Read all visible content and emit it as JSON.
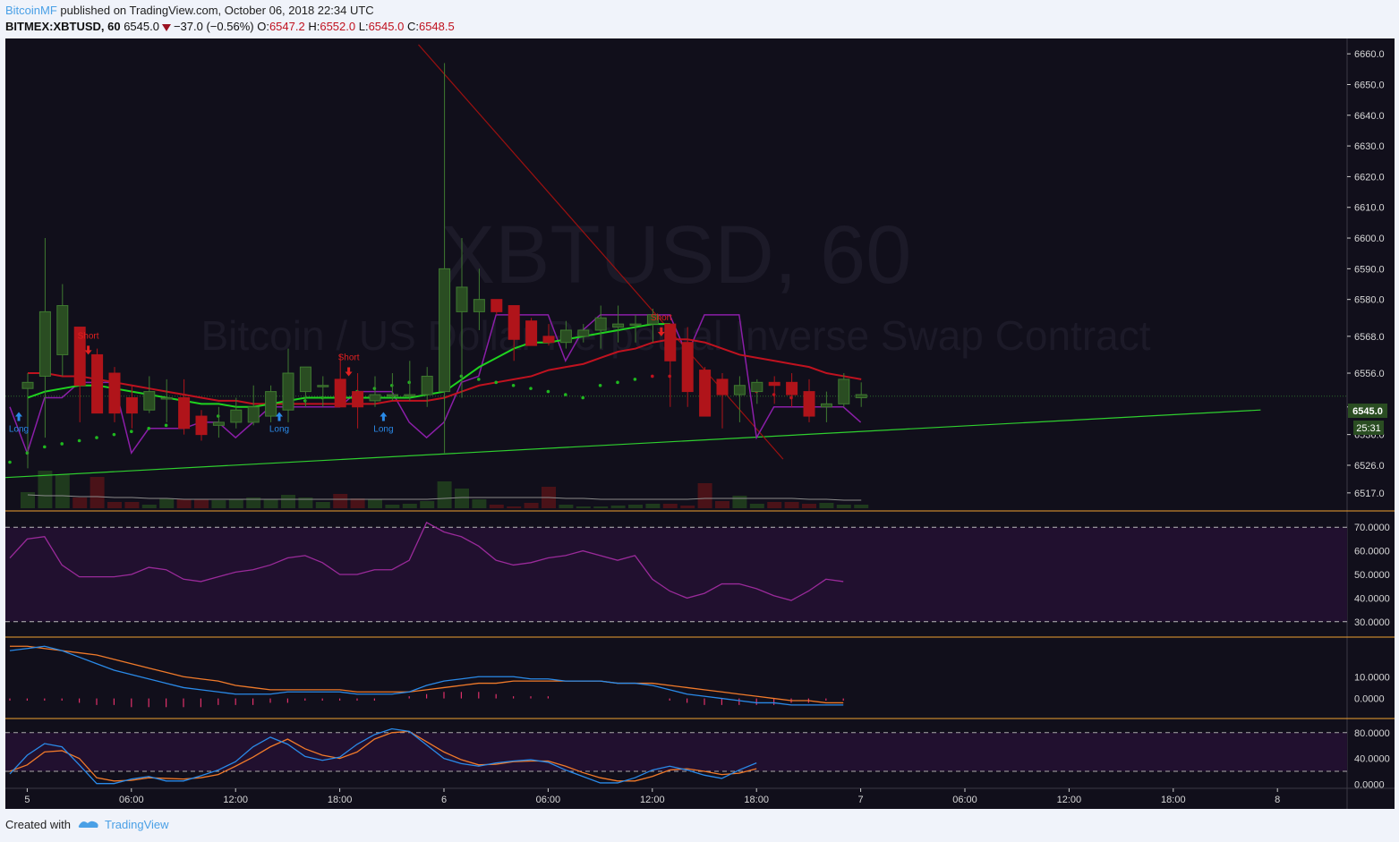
{
  "header": {
    "author": "BitcoinMF",
    "published": "published on TradingView.com, October 06, 2018 22:34 UTC",
    "symbol": "BITMEX:XBTUSD, 60",
    "last": "6545.0",
    "change": "−37.0 (−0.56%)",
    "o_label": "O:",
    "o": "6547.2",
    "h_label": "H:",
    "h": "6552.0",
    "l_label": "L:",
    "l": "6545.0",
    "c_label": "C:",
    "c": "6548.5"
  },
  "watermark": {
    "title": "XBTUSD, 60",
    "subtitle": "Bitcoin / US Dollar Perpetual Inverse Swap Contract"
  },
  "footer": {
    "created": "Created with",
    "brand": "TradingView"
  },
  "colors": {
    "bg": "#110f1b",
    "up": "#2a4d22",
    "up_border": "#3f7a30",
    "down": "#b0141a",
    "ma_red": "#c0121f",
    "ma_green": "#1fd31f",
    "envelope": "#8b1ea8",
    "trend_green": "#2fcf2f",
    "trend_red": "#9b1010",
    "rsi": "#9a2a9a",
    "macd": "#2a8ae8",
    "signal": "#f07a2a",
    "stoch_k": "#2a8ae8",
    "stoch_d": "#f07a2a",
    "pane_sep": "#f0a030",
    "rsi_bg": "#21102f"
  },
  "chart_data": {
    "type": "candlestick",
    "ylim": [
      6512,
      6665
    ],
    "y_ticks": [
      6660.0,
      6650.0,
      6640.0,
      6630.0,
      6620.0,
      6610.0,
      6600.0,
      6590.0,
      6580.0,
      6568.0,
      6556.0,
      6545.0,
      6536.0,
      6526.0,
      6517.0
    ],
    "price_badge": "6545.0",
    "countdown_badge": "25:31",
    "x_ticks": [
      "5",
      "06:00",
      "12:00",
      "18:00",
      "6",
      "06:00",
      "12:00",
      "18:00",
      "7",
      "06:00",
      "12:00",
      "18:00",
      "8"
    ],
    "tick_index": [
      1,
      7,
      13,
      19,
      25,
      31,
      37,
      43,
      49,
      55,
      61,
      67,
      73
    ],
    "candles": [
      {
        "o": 6551,
        "h": 6556,
        "l": 6525,
        "c": 6553
      },
      {
        "o": 6555,
        "h": 6600,
        "l": 6535,
        "c": 6576
      },
      {
        "o": 6562,
        "h": 6585,
        "l": 6555,
        "c": 6578
      },
      {
        "o": 6571,
        "h": 6571,
        "l": 6540,
        "c": 6552
      },
      {
        "o": 6562,
        "h": 6564,
        "l": 6543,
        "c": 6543
      },
      {
        "o": 6556,
        "h": 6558,
        "l": 6540,
        "c": 6543
      },
      {
        "o": 6548,
        "h": 6552,
        "l": 6538,
        "c": 6543
      },
      {
        "o": 6544,
        "h": 6555,
        "l": 6543,
        "c": 6550
      },
      {
        "o": 6548,
        "h": 6554,
        "l": 6540,
        "c": 6548
      },
      {
        "o": 6548,
        "h": 6554,
        "l": 6536,
        "c": 6538
      },
      {
        "o": 6542,
        "h": 6544,
        "l": 6534,
        "c": 6536
      },
      {
        "o": 6539,
        "h": 6545,
        "l": 6535,
        "c": 6540
      },
      {
        "o": 6540,
        "h": 6548,
        "l": 6538,
        "c": 6544
      },
      {
        "o": 6540,
        "h": 6552,
        "l": 6539,
        "c": 6545
      },
      {
        "o": 6542,
        "h": 6552,
        "l": 6540,
        "c": 6550
      },
      {
        "o": 6544,
        "h": 6564,
        "l": 6540,
        "c": 6556
      },
      {
        "o": 6550,
        "h": 6558,
        "l": 6545,
        "c": 6558
      },
      {
        "o": 6552,
        "h": 6555,
        "l": 6545,
        "c": 6552
      },
      {
        "o": 6554,
        "h": 6562,
        "l": 6545,
        "c": 6545
      },
      {
        "o": 6550,
        "h": 6556,
        "l": 6538,
        "c": 6545
      },
      {
        "o": 6547,
        "h": 6555,
        "l": 6545,
        "c": 6549
      },
      {
        "o": 6549,
        "h": 6556,
        "l": 6547,
        "c": 6549
      },
      {
        "o": 6549,
        "h": 6560,
        "l": 6547,
        "c": 6549
      },
      {
        "o": 6549,
        "h": 6558,
        "l": 6545,
        "c": 6555
      },
      {
        "o": 6550,
        "h": 6657,
        "l": 6530,
        "c": 6590
      },
      {
        "o": 6576,
        "h": 6600,
        "l": 6548,
        "c": 6584
      },
      {
        "o": 6576,
        "h": 6590,
        "l": 6570,
        "c": 6580
      },
      {
        "o": 6580,
        "h": 6580,
        "l": 6575,
        "c": 6576
      },
      {
        "o": 6578,
        "h": 6578,
        "l": 6560,
        "c": 6567
      },
      {
        "o": 6573,
        "h": 6574,
        "l": 6565,
        "c": 6565
      },
      {
        "o": 6568,
        "h": 6572,
        "l": 6565,
        "c": 6566
      },
      {
        "o": 6566,
        "h": 6573,
        "l": 6564,
        "c": 6570
      },
      {
        "o": 6568,
        "h": 6572,
        "l": 6566,
        "c": 6570
      },
      {
        "o": 6570,
        "h": 6578,
        "l": 6564,
        "c": 6574
      },
      {
        "o": 6571,
        "h": 6578,
        "l": 6566,
        "c": 6572
      },
      {
        "o": 6572,
        "h": 6575,
        "l": 6566,
        "c": 6572
      },
      {
        "o": 6572,
        "h": 6577,
        "l": 6566,
        "c": 6575
      },
      {
        "o": 6572,
        "h": 6572,
        "l": 6545,
        "c": 6560
      },
      {
        "o": 6566,
        "h": 6571,
        "l": 6545,
        "c": 6550
      },
      {
        "o": 6557,
        "h": 6558,
        "l": 6542,
        "c": 6542
      },
      {
        "o": 6554,
        "h": 6556,
        "l": 6538,
        "c": 6549
      },
      {
        "o": 6549,
        "h": 6555,
        "l": 6540,
        "c": 6552
      },
      {
        "o": 6550,
        "h": 6554,
        "l": 6546,
        "c": 6553
      },
      {
        "o": 6553,
        "h": 6555,
        "l": 6546,
        "c": 6552
      },
      {
        "o": 6553,
        "h": 6556,
        "l": 6545,
        "c": 6549
      },
      {
        "o": 6550,
        "h": 6554,
        "l": 6540,
        "c": 6542
      },
      {
        "o": 6545,
        "h": 6550,
        "l": 6540,
        "c": 6546
      },
      {
        "o": 6546,
        "h": 6556,
        "l": 6545,
        "c": 6554
      },
      {
        "o": 6548,
        "h": 6553,
        "l": 6545,
        "c": 6549
      }
    ],
    "volume": [
      18,
      42,
      38,
      12,
      35,
      7,
      7,
      4,
      11,
      10,
      10,
      9,
      10,
      12,
      10,
      15,
      12,
      7,
      16,
      11,
      10,
      4,
      5,
      8,
      30,
      22,
      10,
      4,
      2,
      6,
      24,
      4,
      2,
      2,
      3,
      4,
      5,
      5,
      3,
      28,
      8,
      14,
      5,
      7,
      7,
      5,
      6,
      4,
      4
    ],
    "volume_ma": [
      15,
      14,
      14,
      13,
      13,
      12,
      12,
      11,
      11,
      10,
      10,
      10,
      10,
      10,
      10,
      10,
      10,
      10,
      10,
      10,
      10,
      10,
      10,
      10,
      11,
      12,
      12,
      12,
      12,
      12,
      12,
      11,
      11,
      10,
      10,
      10,
      10,
      10,
      10,
      11,
      11,
      11,
      11,
      11,
      11,
      10,
      10,
      9,
      9
    ],
    "ma_red": [
      6556,
      6556,
      6555,
      6555,
      6554,
      6553,
      6552,
      6551,
      6550,
      6549,
      6548,
      6547,
      6547,
      6546,
      6546,
      6546,
      6546,
      6546,
      6546,
      6546,
      6546,
      6547,
      6547,
      6547,
      6548,
      6550,
      6552,
      6553,
      6554,
      6555,
      6557,
      6558,
      6559,
      6561,
      6563,
      6564,
      6566,
      6567,
      6567,
      6566,
      6564,
      6562,
      6561,
      6560,
      6559,
      6558,
      6556,
      6555,
      6554
    ],
    "ma_green": [
      6548,
      6550,
      6551,
      6552,
      6552,
      6551,
      6550,
      6549,
      6548,
      6547,
      6546,
      6546,
      6545,
      6545,
      6546,
      6547,
      6548,
      6548,
      6548,
      6548,
      6548,
      6548,
      6548,
      6549,
      6550,
      6554,
      6558,
      6561,
      6564,
      6566,
      6566,
      6567,
      6568,
      6569,
      6570,
      6571,
      6572,
      6572
    ],
    "envelope": [
      6545,
      6530,
      6548,
      6548,
      6553,
      6553,
      6553,
      6530,
      6538,
      6538,
      6538,
      6540,
      6540,
      6535,
      6540,
      6545,
      6545,
      6545,
      6545,
      6545,
      6550,
      6550,
      6550,
      6540,
      6535,
      6540,
      6553,
      6555,
      6575,
      6575,
      6575,
      6575,
      6560,
      6570,
      6575,
      6575,
      6575,
      6575,
      6575,
      6562,
      6575,
      6575,
      6575,
      6535,
      6545,
      6545,
      6545,
      6545,
      6545,
      6540
    ],
    "dots": [
      6527,
      6530,
      6532,
      6533,
      6534,
      6535,
      6536,
      6537,
      6538,
      6539,
      6540,
      6541,
      6542,
      6543,
      6544,
      6545,
      6546,
      6547,
      6548,
      6549,
      6550,
      6551,
      6552,
      6553,
      6554,
      6555,
      6555,
      6554,
      6553,
      6552,
      6551,
      6550,
      6549,
      6548,
      6552,
      6553,
      6554,
      6555,
      6555,
      6554,
      6553,
      6552,
      6551,
      6550,
      6549,
      6548
    ],
    "trend_green": {
      "from": [
        0,
        6522
      ],
      "to": [
        71,
        6544
      ]
    },
    "trend_red": {
      "from": [
        22.5,
        6663
      ],
      "to": [
        43.5,
        6528
      ]
    },
    "signals": [
      {
        "type": "Long",
        "i": 0,
        "price": 6541
      },
      {
        "type": "Short",
        "i": 4,
        "price": 6562
      },
      {
        "type": "Long",
        "i": 15,
        "price": 6541
      },
      {
        "type": "Short",
        "i": 19,
        "price": 6555
      },
      {
        "type": "Long",
        "i": 21,
        "price": 6541
      },
      {
        "type": "Short",
        "i": 37,
        "price": 6568
      }
    ],
    "rsi": {
      "ylim": [
        25,
        75
      ],
      "ticks": [
        70.0,
        60.0,
        50.0,
        40.0,
        30.0
      ],
      "ticks_text": [
        "70.0000",
        "60.0000",
        "50.0000",
        "40.0000",
        "30.0000"
      ],
      "values": [
        57,
        65,
        66,
        54,
        49,
        49,
        49,
        50,
        53,
        52,
        48,
        47,
        49,
        51,
        52,
        54,
        57,
        58,
        55,
        50,
        50,
        52,
        52,
        56,
        72,
        68,
        66,
        62,
        56,
        54,
        55,
        57,
        58,
        60,
        58,
        56,
        58,
        48,
        43,
        40,
        42,
        46,
        46,
        44,
        41,
        39,
        43,
        48,
        47
      ]
    },
    "macd": {
      "ylim": [
        -8,
        27
      ],
      "ticks": [
        10.0,
        0.0
      ],
      "ticks_text": [
        "10.0000",
        "0.0000"
      ],
      "macd": [
        22,
        23,
        24,
        22,
        19,
        16,
        13,
        11,
        9,
        7,
        5,
        4,
        3,
        2,
        2,
        2,
        3,
        3,
        3,
        3,
        2,
        2,
        2,
        3,
        6,
        8,
        9,
        10,
        10,
        10,
        9,
        9,
        8,
        8,
        8,
        7,
        7,
        6,
        4,
        2,
        1,
        0,
        -1,
        -2,
        -2,
        -3,
        -3,
        -3,
        -3
      ],
      "signal": [
        24,
        24,
        23,
        22,
        21,
        20,
        18,
        16,
        14,
        12,
        10,
        9,
        8,
        6,
        5,
        4,
        4,
        4,
        4,
        4,
        3,
        3,
        3,
        3,
        4,
        5,
        6,
        7,
        7,
        8,
        8,
        8,
        8,
        8,
        8,
        7,
        7,
        7,
        6,
        5,
        4,
        3,
        2,
        1,
        0,
        -1,
        -1,
        -2,
        -2
      ],
      "hist": [
        -1,
        -1,
        -1,
        -1,
        -2,
        -3,
        -3,
        -4,
        -4,
        -4,
        -4,
        -4,
        -3,
        -3,
        -3,
        -2,
        -2,
        -1,
        -1,
        -1,
        -1,
        -1,
        0,
        1,
        2,
        3,
        3,
        3,
        2,
        1,
        1,
        1,
        0,
        0,
        0,
        0,
        0,
        0,
        -1,
        -2,
        -3,
        -3,
        -3,
        -3,
        -3,
        -2,
        -2,
        -1,
        -1
      ]
    },
    "stoch": {
      "ylim": [
        -5,
        95
      ],
      "ticks": [
        80.0,
        40.0,
        0.0
      ],
      "ticks_text": [
        "80.0000",
        "40.0000",
        "0.0000"
      ],
      "band": [
        80,
        20
      ],
      "k": [
        16,
        45,
        63,
        58,
        30,
        1,
        1,
        8,
        12,
        5,
        5,
        13,
        22,
        35,
        58,
        73,
        62,
        43,
        37,
        42,
        62,
        77,
        86,
        82,
        61,
        40,
        32,
        28,
        33,
        36,
        38,
        34,
        22,
        12,
        2,
        2,
        10,
        22,
        28,
        22,
        14,
        9,
        22,
        33
      ],
      "d": [
        20,
        30,
        50,
        52,
        40,
        10,
        5,
        6,
        10,
        9,
        8,
        10,
        15,
        28,
        42,
        58,
        70,
        55,
        45,
        40,
        50,
        70,
        80,
        82,
        66,
        50,
        38,
        30,
        31,
        35,
        36,
        36,
        28,
        18,
        10,
        5,
        5,
        12,
        22,
        24,
        20,
        15,
        17,
        24
      ]
    }
  }
}
